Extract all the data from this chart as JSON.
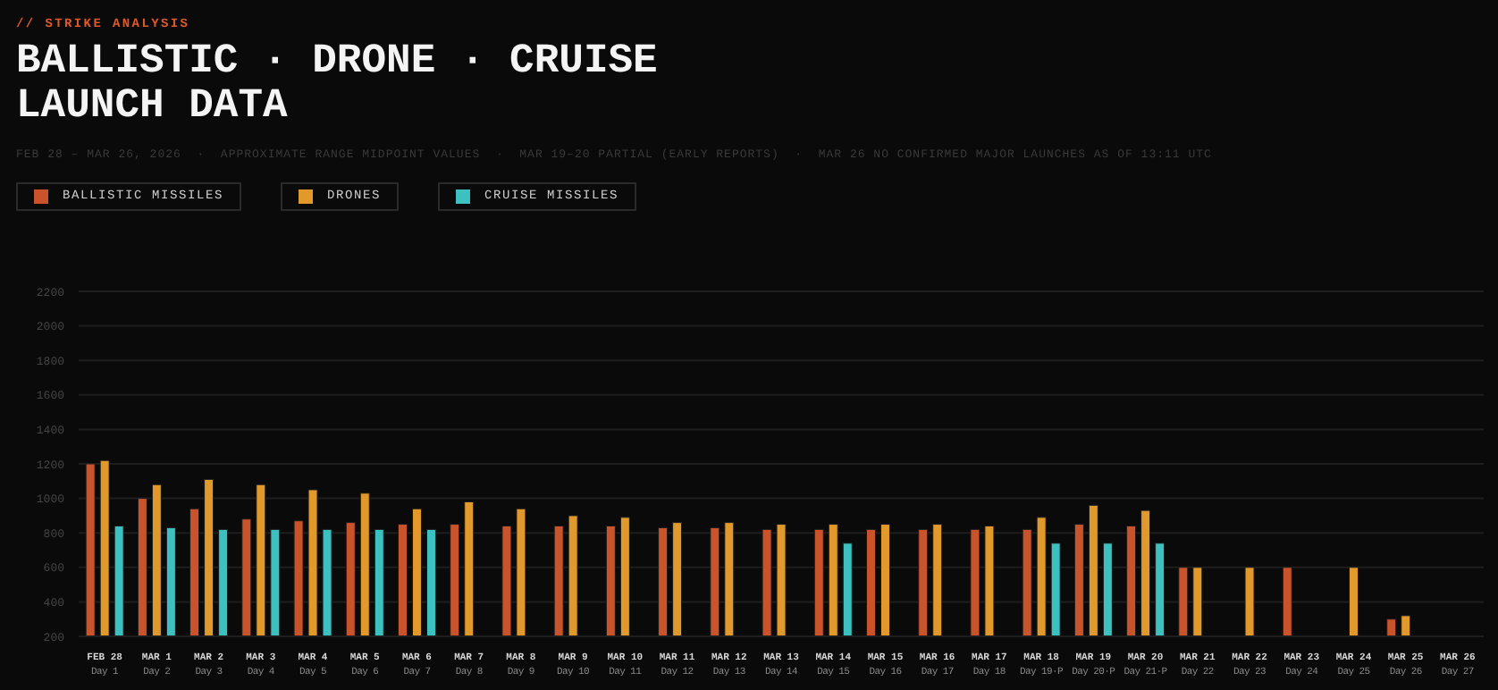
{
  "chart_data": {
    "type": "bar",
    "subtitle": "// STRIKE ANALYSIS",
    "title": "BALLISTIC · DRONE · CRUISE\nLAUNCH DATA",
    "annotations": [
      "FEB 28 – MAR 26, 2026  ·  APPROXIMATE RANGE MIDPOINT VALUES  ·  MAR 19–20 PARTIAL (EARLY REPORTS)  ·  MAR 26 NO CONFIRMED MAJOR LAUNCHES AS OF 13:11 UTC"
    ],
    "categories": [
      "FEB 28\nDay 1",
      "MAR 1\nDay 2",
      "MAR 2\nDay 3",
      "MAR 3\nDay 4",
      "MAR 4\nDay 5",
      "MAR 5\nDay 6",
      "MAR 6\nDay 7",
      "MAR 7\nDay 8",
      "MAR 8\nDay 9",
      "MAR 9\nDay 10",
      "MAR 10\nDay 11",
      "MAR 11\nDay 12",
      "MAR 12\nDay 13",
      "MAR 13\nDay 14",
      "MAR 14\nDay 15",
      "MAR 15\nDay 16",
      "MAR 16\nDay 17",
      "MAR 17\nDay 18",
      "MAR 18\nDay 19·P",
      "MAR 19\nDay 20·P",
      "MAR 20\nDay 21·P",
      "MAR 21\nDay 22",
      "MAR 22\nDay 23",
      "MAR 23\nDay 24",
      "MAR 24\nDay 25",
      "MAR 25\nDay 26",
      "MAR 26\nDay 27"
    ],
    "series": [
      {
        "name": "BALLISTIC MISSILES",
        "color": "#c9532a",
        "values": [
          1200,
          1000,
          940,
          880,
          870,
          860,
          850,
          850,
          840,
          840,
          840,
          830,
          830,
          820,
          820,
          820,
          820,
          820,
          820,
          850,
          840,
          600,
          null,
          600,
          null,
          300,
          null
        ]
      },
      {
        "name": "DRONES",
        "color": "#e0992a",
        "values": [
          1220,
          1080,
          1110,
          1080,
          1050,
          1030,
          940,
          980,
          940,
          900,
          890,
          860,
          860,
          850,
          850,
          850,
          850,
          840,
          890,
          960,
          930,
          600,
          600,
          null,
          600,
          320,
          null
        ]
      },
      {
        "name": "CRUISE MISSILES",
        "color": "#3cc0c0",
        "values": [
          840,
          830,
          820,
          820,
          820,
          820,
          820,
          null,
          null,
          null,
          null,
          null,
          null,
          null,
          740,
          null,
          null,
          null,
          740,
          740,
          740,
          null,
          null,
          null,
          null,
          null,
          null
        ]
      }
    ],
    "ylim": [
      200,
      2200
    ],
    "yticks": [
      200,
      400,
      600,
      800,
      1000,
      1200,
      1400,
      1600,
      1800,
      2000,
      2200
    ],
    "grid": "y",
    "legend": "top left"
  }
}
